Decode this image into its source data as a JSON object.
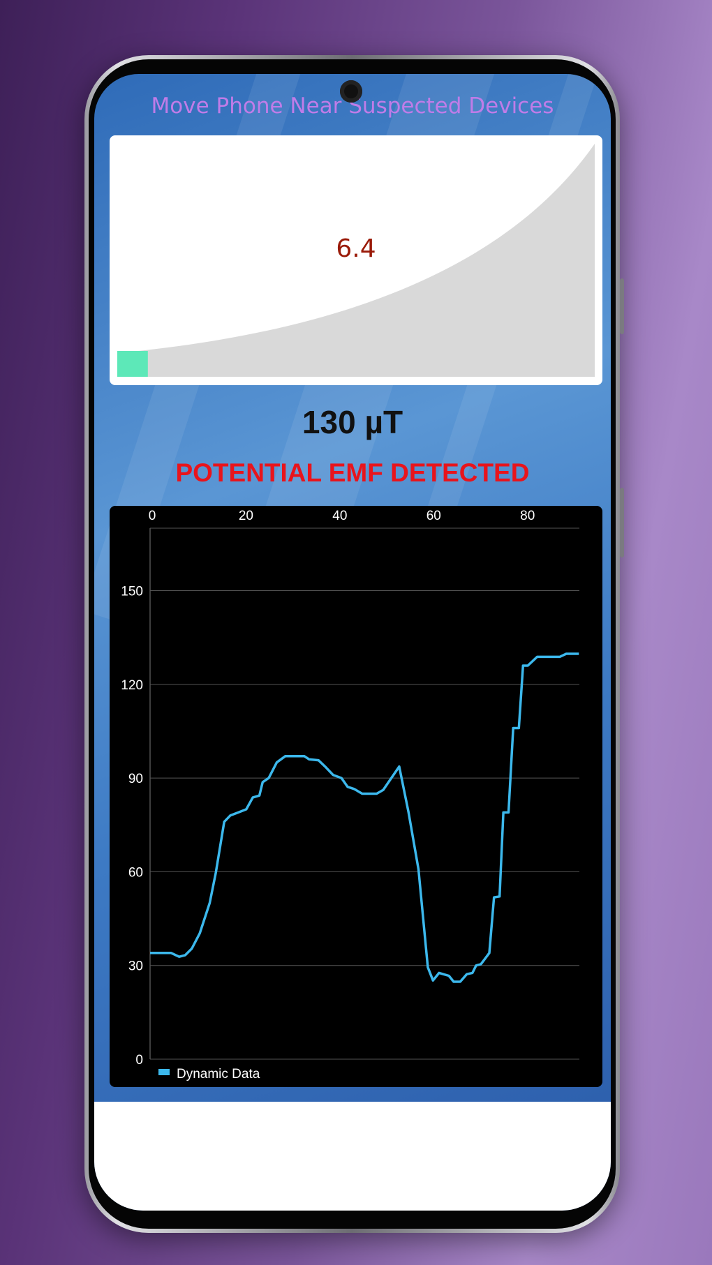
{
  "app": {
    "instruction": "Move Phone Near Suspected Devices",
    "gauge": {
      "value_label": "6.4",
      "fill_percent": 6.4,
      "fill_color": "#5de8b8",
      "track_color": "#d9d9d9"
    },
    "reading": "130 µT",
    "status": "POTENTIAL EMF DETECTED",
    "status_color": "#e8141c"
  },
  "chart_data": {
    "type": "line",
    "title": "",
    "xlabel": "",
    "ylabel": "",
    "xlim": [
      0,
      91.5
    ],
    "ylim": [
      0,
      170
    ],
    "x_ticks": [
      0,
      20,
      40,
      60,
      80
    ],
    "y_ticks": [
      0,
      30,
      60,
      90,
      120,
      150
    ],
    "x_tick_labels": [
      "0",
      "20",
      "40",
      "60",
      "80"
    ],
    "y_tick_labels": [
      "0",
      "30",
      "60",
      "90",
      "120",
      "150"
    ],
    "x_axis_position": "top",
    "grid": true,
    "legend": "bottom-left",
    "series": [
      {
        "name": "Dynamic Data",
        "color": "#3cb8ec",
        "x": [
          0,
          4.5,
          6.2,
          7.5,
          8.9,
          10.6,
          12.7,
          14,
          15.8,
          17.1,
          18.8,
          20.5,
          21.9,
          23.3,
          24,
          25.3,
          27,
          28.8,
          32.9,
          33.9,
          35.9,
          37.3,
          39,
          40.8,
          42.1,
          43.5,
          45.2,
          48.3,
          49.7,
          53.1,
          55.1,
          57.2,
          59.2,
          60.3,
          61.6,
          63.7,
          64.7,
          66.1,
          67.5,
          68.7,
          69.5,
          70.5,
          72.3,
          73.3,
          74.5,
          75.3,
          76.4,
          77.4,
          78.6,
          79.5,
          80.5,
          82.5,
          87.3,
          88.7,
          91.4
        ],
        "y": [
          34,
          34,
          32.8,
          33.3,
          35.4,
          40.3,
          50,
          59.6,
          76,
          78,
          79,
          80,
          83.8,
          84.4,
          88.7,
          90,
          95,
          97,
          97,
          96,
          95.7,
          93.7,
          91,
          90,
          87.2,
          86.5,
          85,
          85,
          86.2,
          93.7,
          79,
          60.8,
          29.4,
          25.2,
          27.6,
          26.7,
          24.8,
          24.8,
          27.2,
          27.6,
          30,
          30.4,
          34,
          51.8,
          52.1,
          79,
          79,
          106,
          106,
          126,
          126,
          128.8,
          128.8,
          129.8,
          129.8
        ]
      }
    ]
  }
}
